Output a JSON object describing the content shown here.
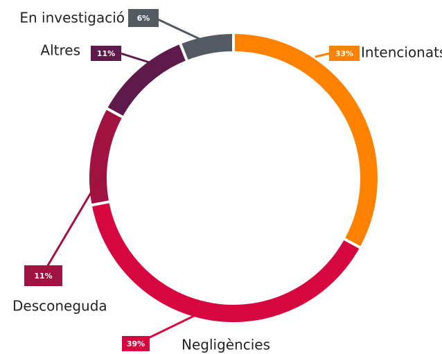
{
  "chart_data": {
    "type": "donut",
    "categories": [
      "Intencionats",
      "Negligències",
      "Desconeguda",
      "Altres",
      "En investigació"
    ],
    "values": [
      33,
      39,
      11,
      11,
      6
    ],
    "value_labels": [
      "33%",
      "39%",
      "11%",
      "11%",
      "6%"
    ],
    "colors": [
      "#ff8100",
      "#d6063f",
      "#a0123f",
      "#5e1a4b",
      "#545a62"
    ]
  }
}
